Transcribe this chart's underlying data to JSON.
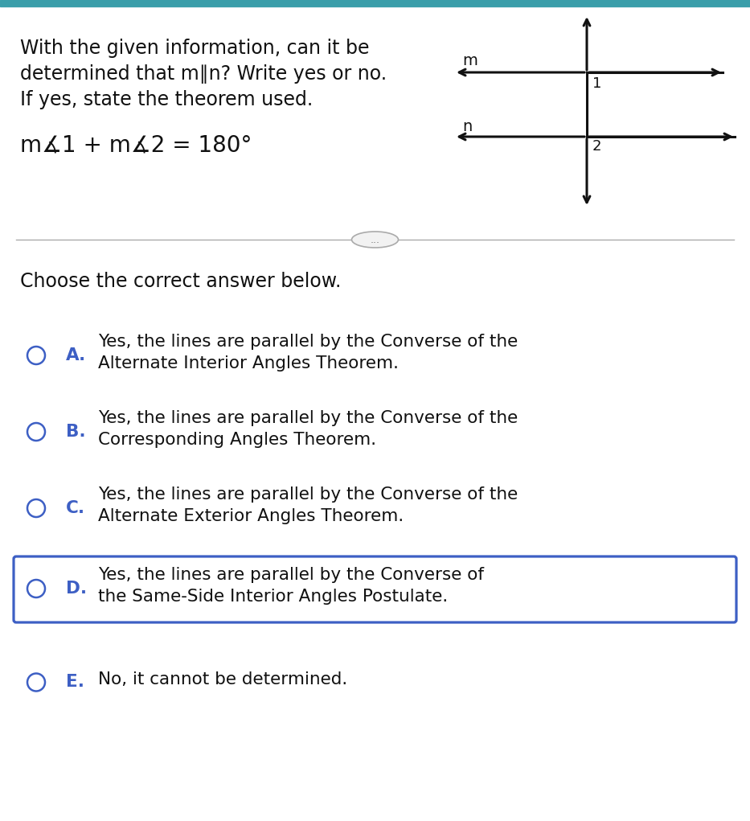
{
  "bg_color": "#ffffff",
  "top_bar_color": "#3a9eaa",
  "question_line1": "With the given information, can it be",
  "question_line2": "determined that m∥n? Write yes or no.",
  "question_line3": "If yes, state the theorem used.",
  "given_text": "m∡1 + m∡2 = 180°",
  "divider_text": "...",
  "choose_text": "Choose the correct answer below.",
  "options": [
    {
      "letter": "A.",
      "line1": "Yes, the lines are parallel by the Converse of the",
      "line2": "Alternate Interior Angles Theorem.",
      "selected": false
    },
    {
      "letter": "B.",
      "line1": "Yes, the lines are parallel by the Converse of the",
      "line2": "Corresponding Angles Theorem.",
      "selected": false
    },
    {
      "letter": "C.",
      "line1": "Yes, the lines are parallel by the Converse of the",
      "line2": "Alternate Exterior Angles Theorem.",
      "selected": false
    },
    {
      "letter": "D.",
      "line1": "Yes, the lines are parallel by the Converse of",
      "line2": "the Same-Side Interior Angles Postulate.",
      "selected": true
    },
    {
      "letter": "E.",
      "line1": "No, it cannot be determined.",
      "line2": "",
      "selected": false
    }
  ],
  "letter_color": "#3d5fc4",
  "circle_color": "#3d5fc4",
  "box_color": "#3d5fc4",
  "text_color": "#111111",
  "line_color": "#111111",
  "top_bar_height": 8,
  "fig_w": 9.33,
  "fig_h": 10.21,
  "dpi": 100
}
